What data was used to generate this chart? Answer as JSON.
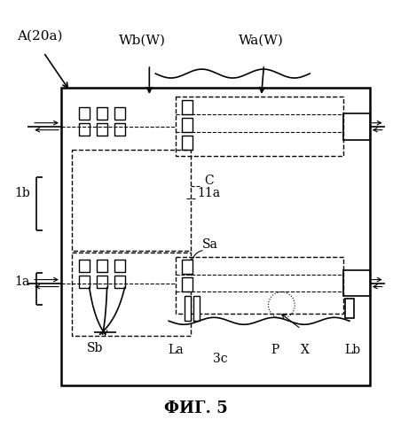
{
  "title": "ФИГ. 5",
  "background_color": "#ffffff",
  "fig_label": "A(20a)",
  "labels": {
    "Wb": "Wb(W)",
    "Wa": "Wa(W)",
    "C": "C",
    "11a": "11a",
    "Sa": "Sa",
    "Sb": "Sb",
    "La": "La",
    "Lb": "Lb",
    "1a": "1a",
    "1b": "1b",
    "3c": "3c",
    "P": "P",
    "X": "X"
  }
}
